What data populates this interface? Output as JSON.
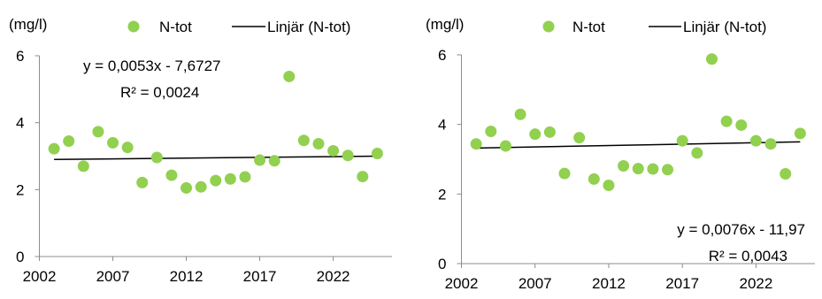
{
  "chart_data": [
    {
      "type": "scatter",
      "ylabel": "(mg/l)",
      "xlim": [
        2002,
        2026
      ],
      "ylim": [
        0,
        6
      ],
      "x_ticks": [
        2002,
        2007,
        2012,
        2017,
        2022
      ],
      "y_ticks": [
        0,
        2,
        4,
        6
      ],
      "grid": false,
      "legend_placement": "top-right",
      "series": [
        {
          "name": "N-tot",
          "color": "#92d050",
          "x": [
            2003,
            2004,
            2005,
            2006,
            2007,
            2008,
            2009,
            2010,
            2011,
            2012,
            2013,
            2014,
            2015,
            2016,
            2017,
            2018,
            2019,
            2020,
            2021,
            2022,
            2023,
            2024,
            2025
          ],
          "y": [
            3.22,
            3.45,
            2.7,
            3.73,
            3.4,
            3.26,
            2.21,
            2.96,
            2.43,
            2.05,
            2.08,
            2.27,
            2.32,
            2.38,
            2.88,
            2.86,
            5.38,
            3.47,
            3.37,
            3.16,
            3.02,
            2.39,
            3.08
          ]
        }
      ],
      "trendline": {
        "name": "Linjär (N-tot)",
        "color": "#000000",
        "x": [
          2003,
          2025
        ],
        "y": [
          2.9,
          3.0
        ]
      },
      "annotations": [
        "y = 0,0053x - 7,6727",
        "R² = 0,0024"
      ]
    },
    {
      "type": "scatter",
      "ylabel": "(mg/l)",
      "xlim": [
        2002,
        2026
      ],
      "ylim": [
        0,
        6
      ],
      "x_ticks": [
        2002,
        2007,
        2012,
        2017,
        2022
      ],
      "y_ticks": [
        0,
        2,
        4,
        6
      ],
      "grid": false,
      "legend_placement": "top-right",
      "series": [
        {
          "name": "N-tot",
          "color": "#92d050",
          "x": [
            2003,
            2004,
            2005,
            2006,
            2007,
            2008,
            2009,
            2010,
            2011,
            2012,
            2013,
            2014,
            2015,
            2016,
            2017,
            2018,
            2019,
            2020,
            2021,
            2022,
            2023,
            2024,
            2025
          ],
          "y": [
            3.44,
            3.8,
            3.38,
            4.29,
            3.72,
            3.78,
            2.59,
            3.62,
            2.43,
            2.25,
            2.81,
            2.73,
            2.72,
            2.7,
            3.53,
            3.18,
            5.88,
            4.09,
            3.98,
            3.53,
            3.44,
            2.58,
            3.74
          ]
        }
      ],
      "trendline": {
        "name": "Linjär (N-tot)",
        "color": "#000000",
        "x": [
          2003,
          2025
        ],
        "y": [
          3.32,
          3.5
        ]
      },
      "annotations": [
        "y = 0,0076x - 11,97",
        "R² = 0,0043"
      ]
    }
  ]
}
